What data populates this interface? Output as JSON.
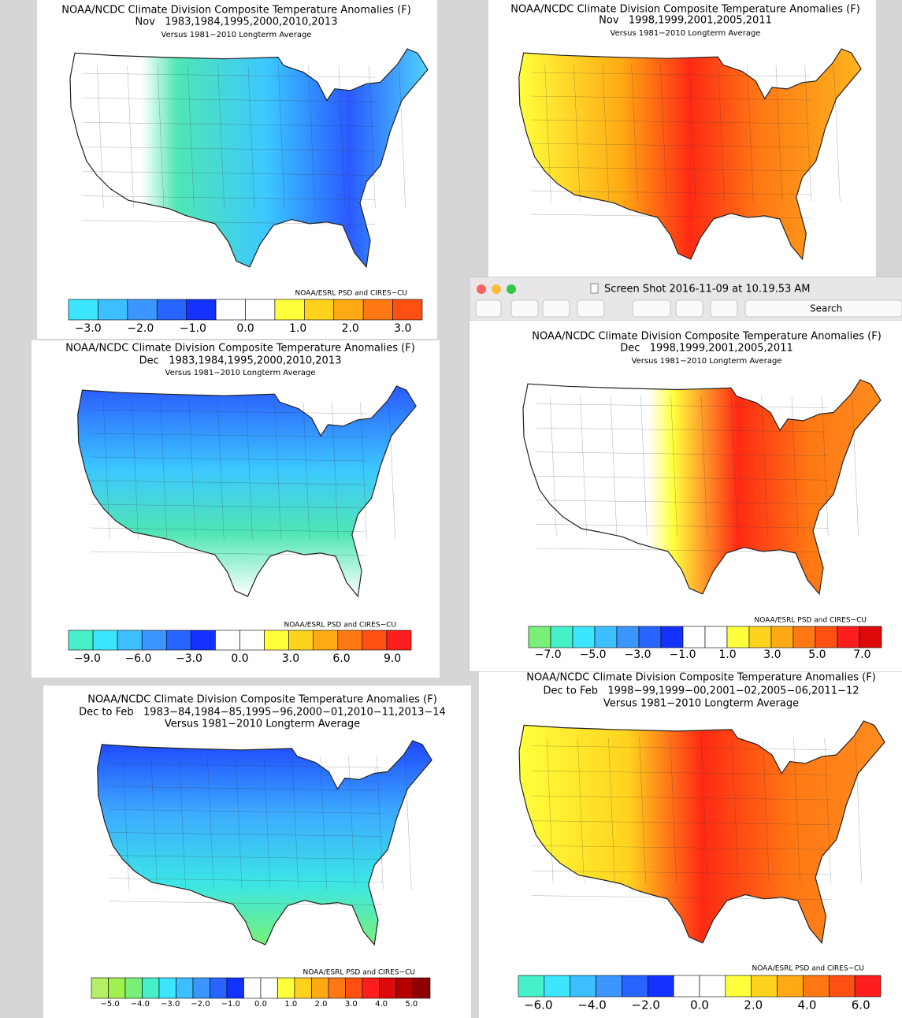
{
  "window": {
    "title": "Screen Shot 2016-11-09 at 10.19.53 AM",
    "search": "Search"
  },
  "panels": [
    {
      "title": "NOAA/NCDC Climate Division Composite Temperature Anomalies (F)",
      "subtitle": "Nov   1983,1984,1995,2000,2010,2013",
      "baseline": "Versus 1981−2010 Longterm Average",
      "credit": "NOAA/ESRL PSD and CIRES−CU",
      "colorbar_labels": [
        "−3.0",
        "−2.0",
        "−1.0",
        "0.0",
        "1.0",
        "2.0",
        "3.0"
      ]
    },
    {
      "title": "NOAA/NCDC Climate Division Composite Temperature Anomalies (F)",
      "subtitle": "Nov   1998,1999,2001,2005,2011",
      "baseline": "Versus 1981−2010 Longterm Average"
    },
    {
      "title": "NOAA/NCDC Climate Division Composite Temperature Anomalies (F)",
      "subtitle": "Dec   1983,1984,1995,2000,2010,2013",
      "baseline": "Versus 1981−2010 Longterm Average",
      "credit": "NOAA/ESRL PSD and CIRES−CU",
      "colorbar_labels": [
        "−9.0",
        "−6.0",
        "−3.0",
        "0.0",
        "3.0",
        "6.0",
        "9.0"
      ]
    },
    {
      "title": "NOAA/NCDC Climate Division Composite Temperature Anomalies (F)",
      "subtitle": "Dec   1998,1999,2001,2005,2011",
      "baseline": "Versus 1981−2010 Longterm Average",
      "credit": "NOAA/ESRL PSD and CIRES−CU",
      "colorbar_labels": [
        "−7.0",
        "−5.0",
        "−3.0",
        "−1.0",
        "1.0",
        "3.0",
        "5.0",
        "7.0"
      ]
    },
    {
      "title": "NOAA/NCDC Climate Division Composite Temperature Anomalies (F)",
      "subtitle": "Dec to Feb   1983−84,1984−85,1995−96,2000−01,2010−11,2013−14",
      "baseline": "Versus 1981−2010 Longterm Average",
      "credit": "NOAA/ESRL PSD and CIRES−CU",
      "colorbar_labels": [
        "−5.0",
        "−4.0",
        "−3.0",
        "−2.0",
        "−1.0",
        "0.0",
        "1.0",
        "2.0",
        "3.0",
        "4.0",
        "5.0"
      ]
    },
    {
      "title": "NOAA/NCDC Climate Division Composite Temperature Anomalies (F)",
      "subtitle": "Dec to Feb   1998−99,1999−00,2001−02,2005−06,2011−12",
      "baseline": "Versus 1981−2010 Longterm Average",
      "credit": "NOAA/ESRL PSD and CIRES−CU",
      "colorbar_labels": [
        "−6.0",
        "−4.0",
        "−2.0",
        "0.0",
        "2.0",
        "4.0",
        "6.0"
      ]
    }
  ]
}
